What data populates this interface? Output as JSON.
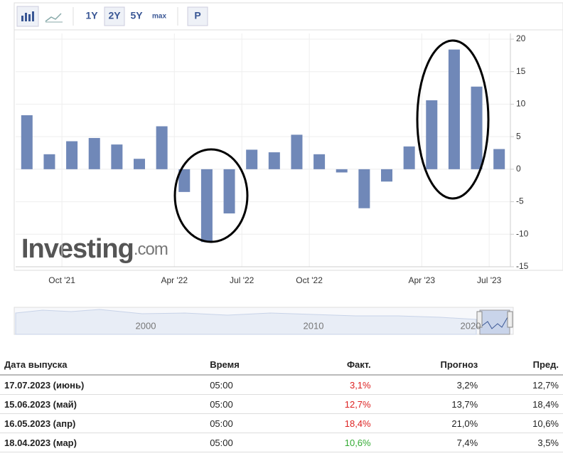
{
  "toolbar": {
    "ranges": [
      "1Y",
      "2Y",
      "5Y",
      "max"
    ],
    "mode": "P"
  },
  "chart_data": {
    "type": "bar",
    "color": "#7088b8",
    "categories": [
      null,
      null,
      "Oct '21",
      null,
      null,
      null,
      null,
      "Apr '22",
      null,
      null,
      "Jul '22",
      null,
      null,
      "Oct '22",
      null,
      null,
      null,
      null,
      "Apr '23",
      null,
      null,
      "Jul '23"
    ],
    "values": [
      8.3,
      2.3,
      4.3,
      4.8,
      3.8,
      1.6,
      6.6,
      -3.5,
      -11.2,
      -6.8,
      3.0,
      2.6,
      5.3,
      2.3,
      -0.5,
      -6.0,
      -1.9,
      3.5,
      10.6,
      18.4,
      12.7,
      3.1
    ],
    "ylim": [
      -15,
      20
    ],
    "yticks": [
      -15,
      -10,
      -5,
      0,
      5,
      10,
      15,
      20
    ],
    "grid": true,
    "watermark": [
      "Investing",
      ".com"
    ]
  },
  "navigator": {
    "labels": [
      "2000",
      "2010",
      "2020"
    ]
  },
  "table": {
    "header": [
      "Дата выпуска",
      "Время",
      "Факт.",
      "Прогноз",
      "Пред."
    ],
    "rows": [
      [
        "17.07.2023 (июнь)",
        "05:00",
        "3,1%",
        "3,2%",
        "12,7%"
      ],
      [
        "15.06.2023 (май)",
        "05:00",
        "12,7%",
        "13,7%",
        "18,4%"
      ],
      [
        "16.05.2023 (апр)",
        "05:00",
        "18,4%",
        "21,0%",
        "10,6%"
      ],
      [
        "18.04.2023 (мар)",
        "05:00",
        "10,6%",
        "7,4%",
        "3,5%"
      ]
    ],
    "fact_colors": [
      "#d22",
      "#d22",
      "#d22",
      "#3a3"
    ]
  }
}
